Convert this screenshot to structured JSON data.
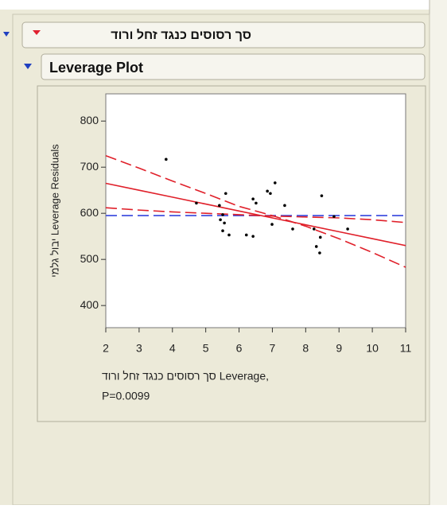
{
  "header": {
    "title": "סך רסוסים כנגד זחל ורוד"
  },
  "section": {
    "title": "Leverage Plot"
  },
  "chart_data": {
    "type": "scatter",
    "ylabel": "יבול גלמי Leverage Residuals",
    "xlabel": "סך רסוסים כנגד זחל ורוד Leverage,",
    "annotation": "P=0.0099",
    "xlim": [
      2,
      11
    ],
    "ylim": [
      352,
      859
    ],
    "xticks": [
      2,
      3,
      4,
      5,
      6,
      7,
      8,
      9,
      10,
      11
    ],
    "yticks": [
      400,
      500,
      600,
      700,
      800
    ],
    "point_color": "#000000",
    "points": {
      "x": [
        3.81,
        4.72,
        5.6,
        5.41,
        5.51,
        5.44,
        5.56,
        5.51,
        5.7,
        6.22,
        6.42,
        6.42,
        6.51,
        6.85,
        6.94,
        7.08,
        7.37,
        6.99,
        7.61,
        8.25,
        8.32,
        8.42,
        8.44,
        8.48,
        8.85,
        9.26
      ],
      "y": [
        717,
        622,
        643,
        617,
        597,
        586,
        579,
        562,
        553,
        553,
        550,
        631,
        622,
        648,
        643,
        666,
        617,
        576,
        566,
        566,
        528,
        514,
        548,
        638,
        593,
        566
      ]
    },
    "line_x": [
      2,
      3,
      4,
      5,
      6,
      7,
      8,
      9,
      10,
      11
    ],
    "lines": [
      {
        "color": "#3344dd",
        "dashed": true,
        "values": [
          595,
          595,
          595,
          595,
          595,
          595,
          595,
          595,
          595,
          595
        ]
      },
      {
        "color": "#e0202a",
        "dashed": false,
        "values": [
          665,
          650,
          635,
          620,
          605,
          590,
          575,
          560,
          545,
          530
        ]
      },
      {
        "color": "#e0202a",
        "dashed": true,
        "values": [
          725,
          698,
          670,
          643,
          615,
          595,
          572,
          545,
          515,
          483
        ]
      },
      {
        "color": "#e0202a",
        "dashed": true,
        "values": [
          612,
          607,
          603,
          600,
          597,
          594,
          592,
          590,
          586,
          580
        ]
      }
    ]
  }
}
